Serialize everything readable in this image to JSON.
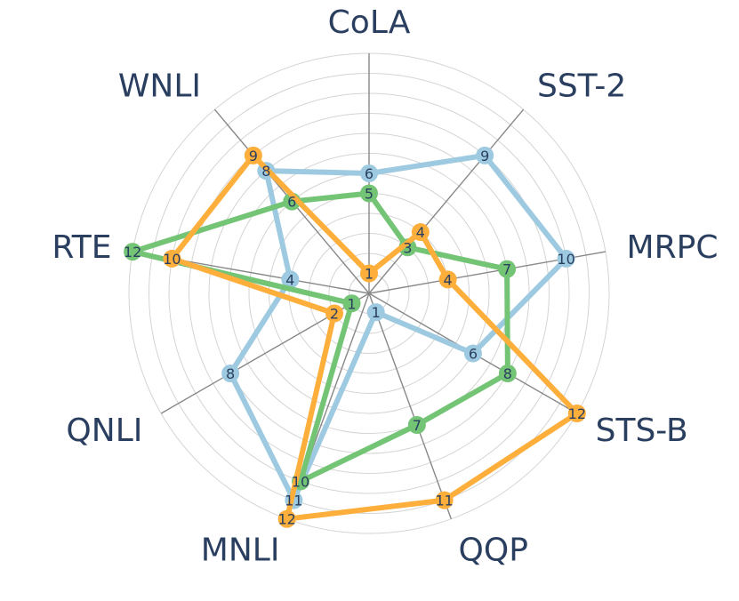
{
  "chart_data": {
    "type": "radar",
    "axes": [
      "CoLA",
      "SST-2",
      "MRPC",
      "STS-B",
      "QQP",
      "MNLI",
      "QNLI",
      "RTE",
      "WNLI"
    ],
    "rlim": [
      0,
      12
    ],
    "grid": true,
    "series": [
      {
        "color": "#9ecae1",
        "values": [
          6,
          9,
          10,
          6,
          1,
          11,
          8,
          4,
          8
        ]
      },
      {
        "color": "#74c476",
        "values": [
          5,
          3,
          7,
          8,
          7,
          10,
          1,
          12,
          6
        ]
      },
      {
        "color": "#fdae3b",
        "values": [
          1,
          4,
          4,
          12,
          11,
          12,
          2,
          10,
          9
        ]
      }
    ]
  }
}
